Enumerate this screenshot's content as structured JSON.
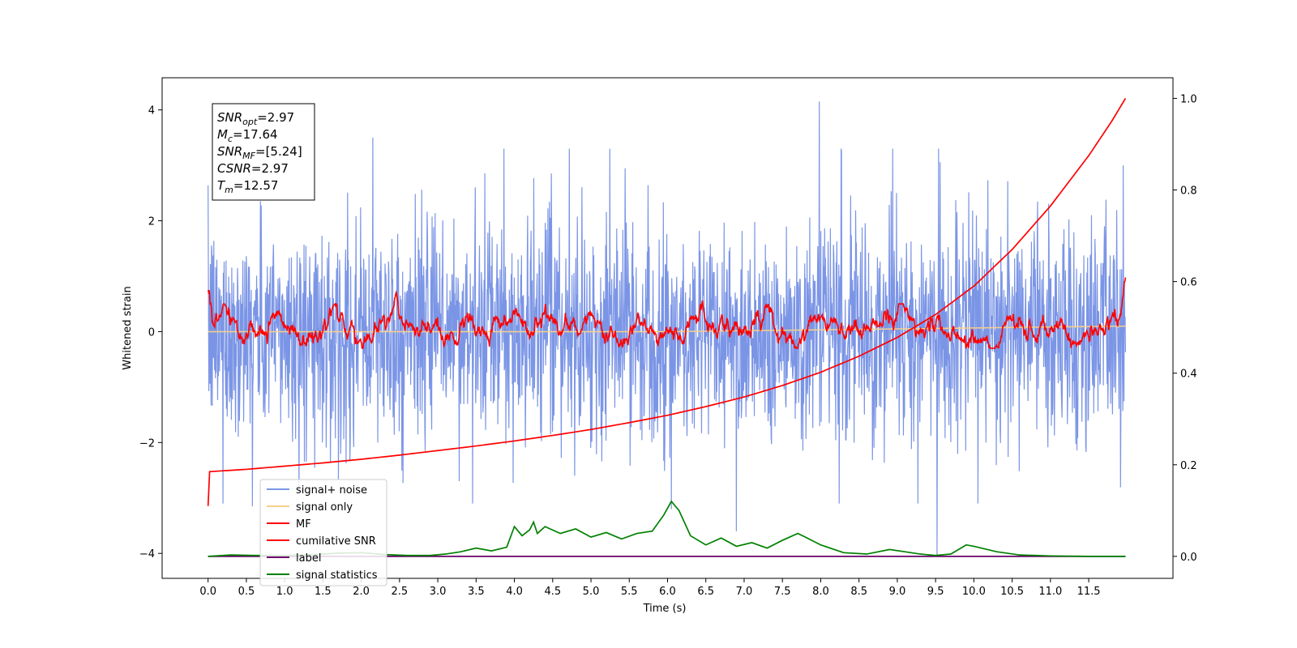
{
  "chart_data": {
    "type": "line",
    "xlabel": "Time (s)",
    "ylabel": "Whitened strain",
    "xlim": [
      -0.6,
      12.6
    ],
    "ylim": [
      -4.45,
      4.58
    ],
    "y2lim": [
      -0.048,
      1.045
    ],
    "x_ticks": [
      0.0,
      0.5,
      1.0,
      1.5,
      2.0,
      2.5,
      3.0,
      3.5,
      4.0,
      4.5,
      5.0,
      5.5,
      6.0,
      6.5,
      7.0,
      7.5,
      8.0,
      8.5,
      9.0,
      9.5,
      10.0,
      10.5,
      11.0,
      11.5
    ],
    "x_tick_labels": [
      "0.0",
      "0.5",
      "1.0",
      "1.5",
      "2.0",
      "2.5",
      "3.0",
      "3.5",
      "4.0",
      "4.5",
      "5.0",
      "5.5",
      "6.0",
      "6.5",
      "7.0",
      "7.5",
      "8.0",
      "8.5",
      "9.0",
      "9.5",
      "10.0",
      "10.5",
      "11.0",
      "11.5"
    ],
    "y_ticks": [
      -4,
      -2,
      0,
      2,
      4
    ],
    "y_tick_labels": [
      "−4",
      "−2",
      "0",
      "2",
      "4"
    ],
    "y2_ticks": [
      0.0,
      0.2,
      0.4,
      0.6,
      0.8,
      1.0
    ],
    "y2_tick_labels": [
      "0.0",
      "0.2",
      "0.4",
      "0.6",
      "0.8",
      "1.0"
    ],
    "grid": false,
    "legend_position": "lower-left",
    "annotation": {
      "lines": [
        {
          "sym": "SNR",
          "sub": "opt",
          "val": "=2.97"
        },
        {
          "sym": "M",
          "sub": "c",
          "val": "=17.64"
        },
        {
          "sym": "SNR",
          "sub": "MF",
          "val": "=[5.24]"
        },
        {
          "sym": "CSNR",
          "sub": "",
          "val": "=2.97"
        },
        {
          "sym": "T",
          "sub": "m",
          "val": "=12.57"
        }
      ]
    },
    "series": [
      {
        "name": "signal+ noise",
        "color": "#7b95e6",
        "axis": "left",
        "style": "noise",
        "x_range": [
          0.0,
          11.98
        ],
        "envelope": [
          -2.3,
          2.3
        ],
        "notable_peaks": [
          [
            7.98,
            4.15
          ],
          [
            2.15,
            3.5
          ],
          [
            9.52,
            -4.05
          ],
          [
            6.9,
            -3.6
          ],
          [
            0.58,
            -3.15
          ],
          [
            6.05,
            -3.2
          ],
          [
            11.95,
            3.0
          ]
        ]
      },
      {
        "name": "signal only",
        "color": "#f7d08a",
        "axis": "left",
        "style": "flat",
        "x": [
          0.0,
          6.0,
          11.98
        ],
        "y": [
          0.0,
          0.0,
          0.1
        ]
      },
      {
        "name": "MF",
        "color": "#ff0000",
        "axis": "left",
        "style": "mf",
        "x_range": [
          0.0,
          11.98
        ],
        "peaks": [
          [
            0.0,
            1.0
          ],
          [
            0.55,
            0.55
          ],
          [
            2.45,
            0.72
          ],
          [
            6.45,
            0.45
          ],
          [
            11.98,
            0.82
          ]
        ]
      },
      {
        "name": "cumilative SNR",
        "color": "#ff0000",
        "axis": "right",
        "x": [
          0.0,
          0.02,
          0.5,
          1.0,
          1.5,
          2.0,
          2.5,
          3.0,
          3.5,
          4.0,
          4.5,
          5.0,
          5.5,
          6.0,
          6.5,
          7.0,
          7.5,
          8.0,
          8.5,
          9.0,
          9.5,
          10.0,
          10.5,
          11.0,
          11.5,
          11.8,
          11.98
        ],
        "y": [
          0.11,
          0.185,
          0.19,
          0.197,
          0.204,
          0.212,
          0.221,
          0.231,
          0.241,
          0.252,
          0.264,
          0.277,
          0.292,
          0.308,
          0.327,
          0.348,
          0.373,
          0.402,
          0.437,
          0.478,
          0.528,
          0.59,
          0.67,
          0.765,
          0.875,
          0.95,
          1.0
        ]
      },
      {
        "name": "label",
        "color": "#6a006a",
        "axis": "right",
        "x": [
          0.0,
          11.98
        ],
        "y": [
          0.0,
          0.0
        ]
      },
      {
        "name": "signal statistics",
        "color": "#008000",
        "axis": "right",
        "x": [
          0.0,
          0.3,
          0.6,
          1.0,
          1.4,
          1.7,
          2.0,
          2.3,
          2.6,
          2.9,
          3.1,
          3.3,
          3.5,
          3.7,
          3.9,
          4.0,
          4.1,
          4.2,
          4.25,
          4.3,
          4.4,
          4.6,
          4.8,
          5.0,
          5.2,
          5.4,
          5.6,
          5.8,
          5.95,
          6.05,
          6.15,
          6.3,
          6.5,
          6.7,
          6.9,
          7.1,
          7.3,
          7.5,
          7.7,
          7.8,
          8.0,
          8.3,
          8.6,
          8.9,
          9.1,
          9.3,
          9.5,
          9.7,
          9.9,
          10.0,
          10.3,
          10.6,
          11.0,
          11.5,
          11.98
        ],
        "y": [
          0.0,
          0.003,
          0.002,
          0.002,
          0.004,
          0.007,
          0.008,
          0.004,
          0.002,
          0.002,
          0.005,
          0.01,
          0.018,
          0.012,
          0.02,
          0.065,
          0.045,
          0.058,
          0.075,
          0.05,
          0.065,
          0.05,
          0.06,
          0.042,
          0.052,
          0.038,
          0.05,
          0.055,
          0.09,
          0.12,
          0.1,
          0.045,
          0.025,
          0.04,
          0.022,
          0.03,
          0.018,
          0.035,
          0.05,
          0.042,
          0.025,
          0.008,
          0.005,
          0.015,
          0.01,
          0.005,
          0.002,
          0.005,
          0.025,
          0.022,
          0.01,
          0.003,
          0.001,
          0.0,
          0.0
        ]
      }
    ]
  }
}
